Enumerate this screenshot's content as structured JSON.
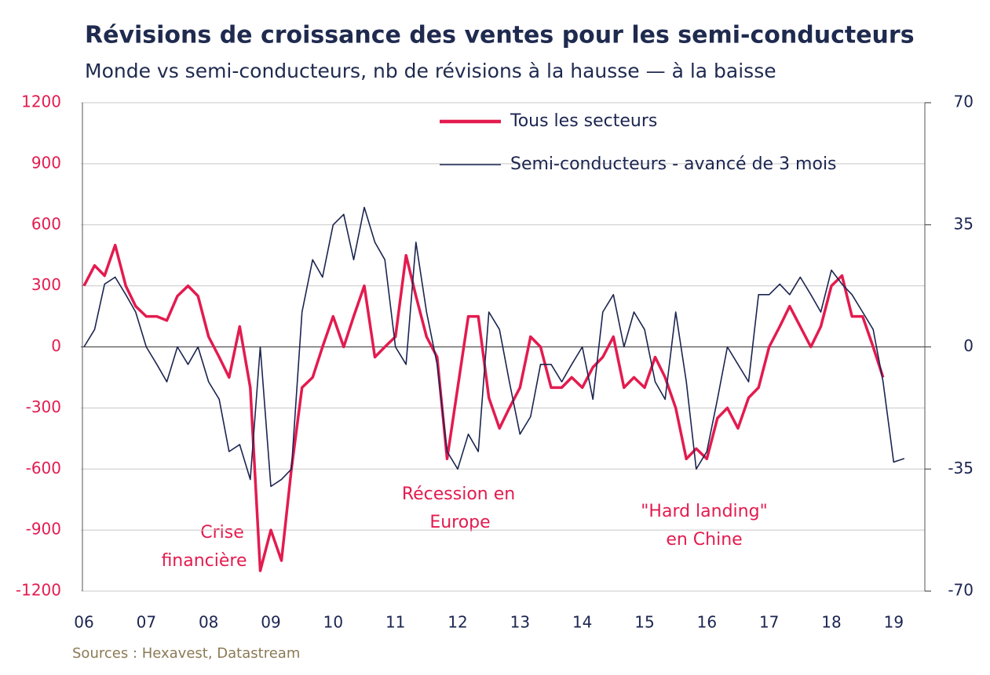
{
  "chart_data": {
    "type": "line",
    "title": "Révisions de croissance des ventes pour les semi-conducteurs",
    "subtitle": "Monde vs semi-conducteurs, nb de révisions à la hausse — à la baisse",
    "source": "Sources : Hexavest, Datastream",
    "annotations": [
      [
        "Crise",
        "financière"
      ],
      [
        "Récession en",
        "Europe"
      ],
      [
        "\"Hard landing\"",
        "en Chine"
      ]
    ],
    "x": [
      6,
      6.17,
      6.33,
      6.5,
      6.67,
      6.83,
      7,
      7.17,
      7.33,
      7.5,
      7.67,
      7.83,
      8,
      8.17,
      8.33,
      8.5,
      8.67,
      8.83,
      9,
      9.17,
      9.33,
      9.5,
      9.67,
      9.83,
      10,
      10.17,
      10.33,
      10.5,
      10.67,
      10.83,
      11,
      11.17,
      11.33,
      11.5,
      11.67,
      11.83,
      12,
      12.17,
      12.33,
      12.5,
      12.67,
      12.83,
      13,
      13.17,
      13.33,
      13.5,
      13.67,
      13.83,
      14,
      14.17,
      14.33,
      14.5,
      14.67,
      14.83,
      15,
      15.17,
      15.33,
      15.5,
      15.67,
      15.83,
      16,
      16.17,
      16.33,
      16.5,
      16.67,
      16.83,
      17,
      17.17,
      17.33,
      17.5,
      17.67,
      17.83,
      18,
      18.17,
      18.33,
      18.5,
      18.67,
      18.83,
      19,
      19.17
    ],
    "series": [
      {
        "name": "Tous les secteurs",
        "color": "#e31b4f",
        "axis": "y",
        "values": [
          300,
          400,
          350,
          500,
          300,
          200,
          150,
          150,
          130,
          250,
          300,
          250,
          50,
          -50,
          -150,
          100,
          -200,
          -1100,
          -900,
          -1050,
          -600,
          -200,
          -150,
          0,
          150,
          0,
          150,
          300,
          -50,
          0,
          50,
          450,
          250,
          50,
          -50,
          -550,
          -200,
          150,
          150,
          -250,
          -400,
          -300,
          -200,
          50,
          0,
          -200,
          -200,
          -150,
          -200,
          -100,
          -50,
          50,
          -200,
          -150,
          -200,
          -50,
          -150,
          -300,
          -550,
          -500,
          -550,
          -350,
          -300,
          -400,
          -250,
          -200,
          0,
          100,
          200,
          100,
          0,
          100,
          300,
          350,
          150,
          150,
          0,
          -150,
          null,
          null
        ]
      },
      {
        "name": "Semi-conducteurs - avancé de 3 mois",
        "color": "#1b2550",
        "axis": "y2",
        "values": [
          0,
          5,
          18,
          20,
          15,
          10,
          0,
          -5,
          -10,
          0,
          -5,
          0,
          -10,
          -15,
          -30,
          -28,
          -38,
          0,
          -40,
          -38,
          -35,
          10,
          25,
          20,
          35,
          38,
          25,
          40,
          30,
          25,
          0,
          -5,
          30,
          10,
          -5,
          -30,
          -35,
          -25,
          -30,
          10,
          5,
          -10,
          -25,
          -20,
          -5,
          -5,
          -10,
          -5,
          0,
          -15,
          10,
          15,
          0,
          10,
          5,
          -10,
          -15,
          10,
          -10,
          -35,
          -30,
          -15,
          0,
          -5,
          -10,
          15,
          15,
          18,
          15,
          20,
          15,
          10,
          22,
          18,
          15,
          10,
          5,
          -10,
          -33,
          -32
        ]
      }
    ],
    "xlim": [
      6,
      19.5
    ],
    "xticks": [
      {
        "value": 6,
        "label": "06"
      },
      {
        "value": 7,
        "label": "07"
      },
      {
        "value": 8,
        "label": "08"
      },
      {
        "value": 9,
        "label": "09"
      },
      10,
      11,
      12,
      13,
      14,
      15,
      16,
      17,
      18,
      19
    ],
    "ylim": [
      -1200,
      1200
    ],
    "yticks": [
      -1200,
      -900,
      -600,
      -300,
      0,
      300,
      600,
      900,
      1200
    ],
    "y2lim": [
      -70,
      70
    ],
    "y2ticks": [
      -70,
      -35,
      0,
      35,
      70
    ],
    "grid": true,
    "legend": "top-right"
  }
}
